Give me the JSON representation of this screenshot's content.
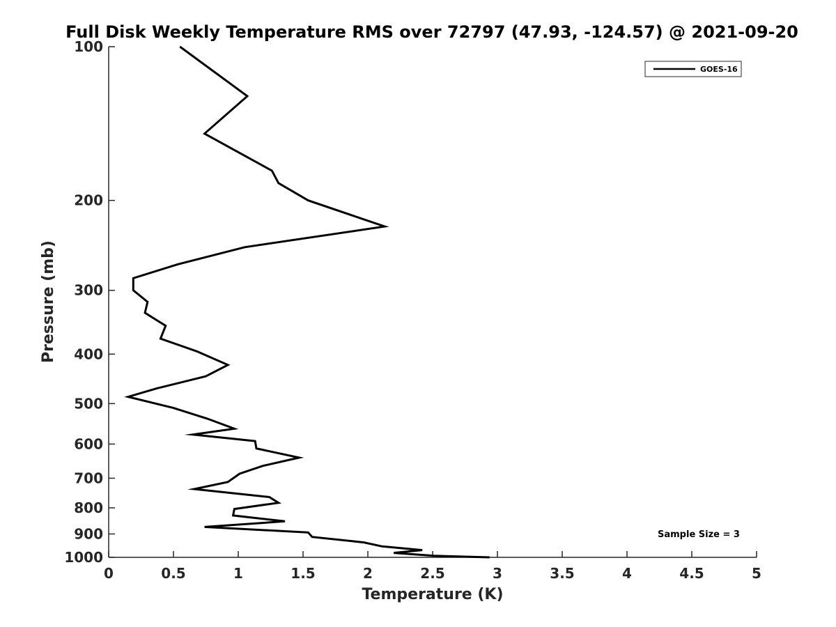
{
  "chart_data": {
    "type": "line",
    "title": "Full Disk Weekly Temperature RMS over 72797 (47.93, -124.57) @ 2021-09-20",
    "xlabel": "Temperature (K)",
    "ylabel": "Pressure (mb)",
    "xlim": [
      0,
      5
    ],
    "ylim": [
      100,
      1000
    ],
    "yscale": "log",
    "yreversed": true,
    "xticks": [
      0,
      0.5,
      1,
      1.5,
      2,
      2.5,
      3,
      3.5,
      4,
      4.5,
      5
    ],
    "xtick_labels": [
      "0",
      "0.5",
      "1",
      "1.5",
      "2",
      "2.5",
      "3",
      "3.5",
      "4",
      "4.5",
      "5"
    ],
    "yticks": [
      100,
      200,
      300,
      400,
      500,
      600,
      700,
      800,
      900,
      1000
    ],
    "ytick_labels": [
      "100",
      "200",
      "300",
      "400",
      "500",
      "600",
      "700",
      "800",
      "900",
      "1000"
    ],
    "grid": false,
    "legend_position": "top-right",
    "series": [
      {
        "name": "GOES-16",
        "color": "#000000",
        "x": [
          0.55,
          1.07,
          0.74,
          1.26,
          1.31,
          1.54,
          2.13,
          1.05,
          0.53,
          0.19,
          0.19,
          0.3,
          0.28,
          0.44,
          0.4,
          0.68,
          0.92,
          0.75,
          0.37,
          0.15,
          0.5,
          0.76,
          0.97,
          0.65,
          1.13,
          1.14,
          1.47,
          1.19,
          1.01,
          0.92,
          0.66,
          1.24,
          1.31,
          0.97,
          0.96,
          1.36,
          0.74,
          1.54,
          1.57,
          1.97,
          2.11,
          2.42,
          2.2,
          2.51,
          2.94
        ],
        "y": [
          100,
          125,
          148,
          175,
          185,
          200,
          225,
          247,
          267,
          284,
          300,
          316,
          332,
          352,
          373,
          395,
          420,
          442,
          467,
          485,
          510,
          535,
          560,
          575,
          592,
          612,
          638,
          662,
          686,
          712,
          735,
          762,
          782,
          804,
          828,
          850,
          872,
          894,
          912,
          935,
          952,
          968,
          980,
          993,
          1000
        ]
      }
    ],
    "annotations": [
      "Sample Size = 3"
    ]
  }
}
